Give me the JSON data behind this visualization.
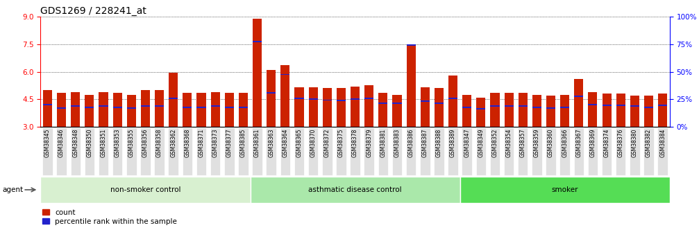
{
  "title": "GDS1269 / 228241_at",
  "samples": [
    "GSM38345",
    "GSM38346",
    "GSM38348",
    "GSM38350",
    "GSM38351",
    "GSM38353",
    "GSM38355",
    "GSM38356",
    "GSM38358",
    "GSM38362",
    "GSM38368",
    "GSM38371",
    "GSM38373",
    "GSM38377",
    "GSM38385",
    "GSM38361",
    "GSM38363",
    "GSM38364",
    "GSM38365",
    "GSM38370",
    "GSM38372",
    "GSM38375",
    "GSM38378",
    "GSM38379",
    "GSM38381",
    "GSM38383",
    "GSM38386",
    "GSM38387",
    "GSM38388",
    "GSM38389",
    "GSM38347",
    "GSM38349",
    "GSM38352",
    "GSM38354",
    "GSM38357",
    "GSM38359",
    "GSM38360",
    "GSM38366",
    "GSM38367",
    "GSM38369",
    "GSM38374",
    "GSM38376",
    "GSM38380",
    "GSM38382",
    "GSM38384"
  ],
  "count_values": [
    5.0,
    4.85,
    4.9,
    4.75,
    4.9,
    4.85,
    4.75,
    5.0,
    5.0,
    5.95,
    4.85,
    4.85,
    4.9,
    4.85,
    4.85,
    8.9,
    6.1,
    6.35,
    5.15,
    5.15,
    5.1,
    5.1,
    5.2,
    5.25,
    4.85,
    4.75,
    7.5,
    5.15,
    5.1,
    5.8,
    4.75,
    4.6,
    4.85,
    4.85,
    4.85,
    4.75,
    4.7,
    4.75,
    5.6,
    4.9,
    4.8,
    4.8,
    4.7,
    4.7,
    4.8
  ],
  "percentile_values": [
    4.22,
    4.02,
    4.12,
    4.07,
    4.12,
    4.07,
    4.02,
    4.12,
    4.12,
    4.55,
    4.07,
    4.07,
    4.12,
    4.07,
    4.07,
    7.65,
    4.85,
    5.85,
    4.55,
    4.5,
    4.45,
    4.42,
    4.52,
    4.55,
    4.28,
    4.28,
    7.45,
    4.38,
    4.28,
    4.55,
    4.07,
    3.97,
    4.12,
    4.12,
    4.12,
    4.07,
    4.02,
    4.07,
    4.65,
    4.22,
    4.17,
    4.17,
    4.12,
    4.07,
    4.17
  ],
  "groups": [
    {
      "name": "non-smoker control",
      "start": 0,
      "end": 15,
      "color": "#d8f0d0"
    },
    {
      "name": "asthmatic disease control",
      "start": 15,
      "end": 30,
      "color": "#aae8aa"
    },
    {
      "name": "smoker",
      "start": 30,
      "end": 45,
      "color": "#55dd55"
    }
  ],
  "ylim_left": [
    3,
    9
  ],
  "ylim_right": [
    0,
    100
  ],
  "yticks_left": [
    3,
    4.5,
    6,
    7.5,
    9
  ],
  "yticks_right": [
    0,
    25,
    50,
    75,
    100
  ],
  "bar_color": "#cc2200",
  "percentile_color": "#2222cc",
  "bg_color": "#ffffff",
  "title_fontsize": 10,
  "tick_fontsize": 5.5,
  "group_label_fontsize": 7.5
}
